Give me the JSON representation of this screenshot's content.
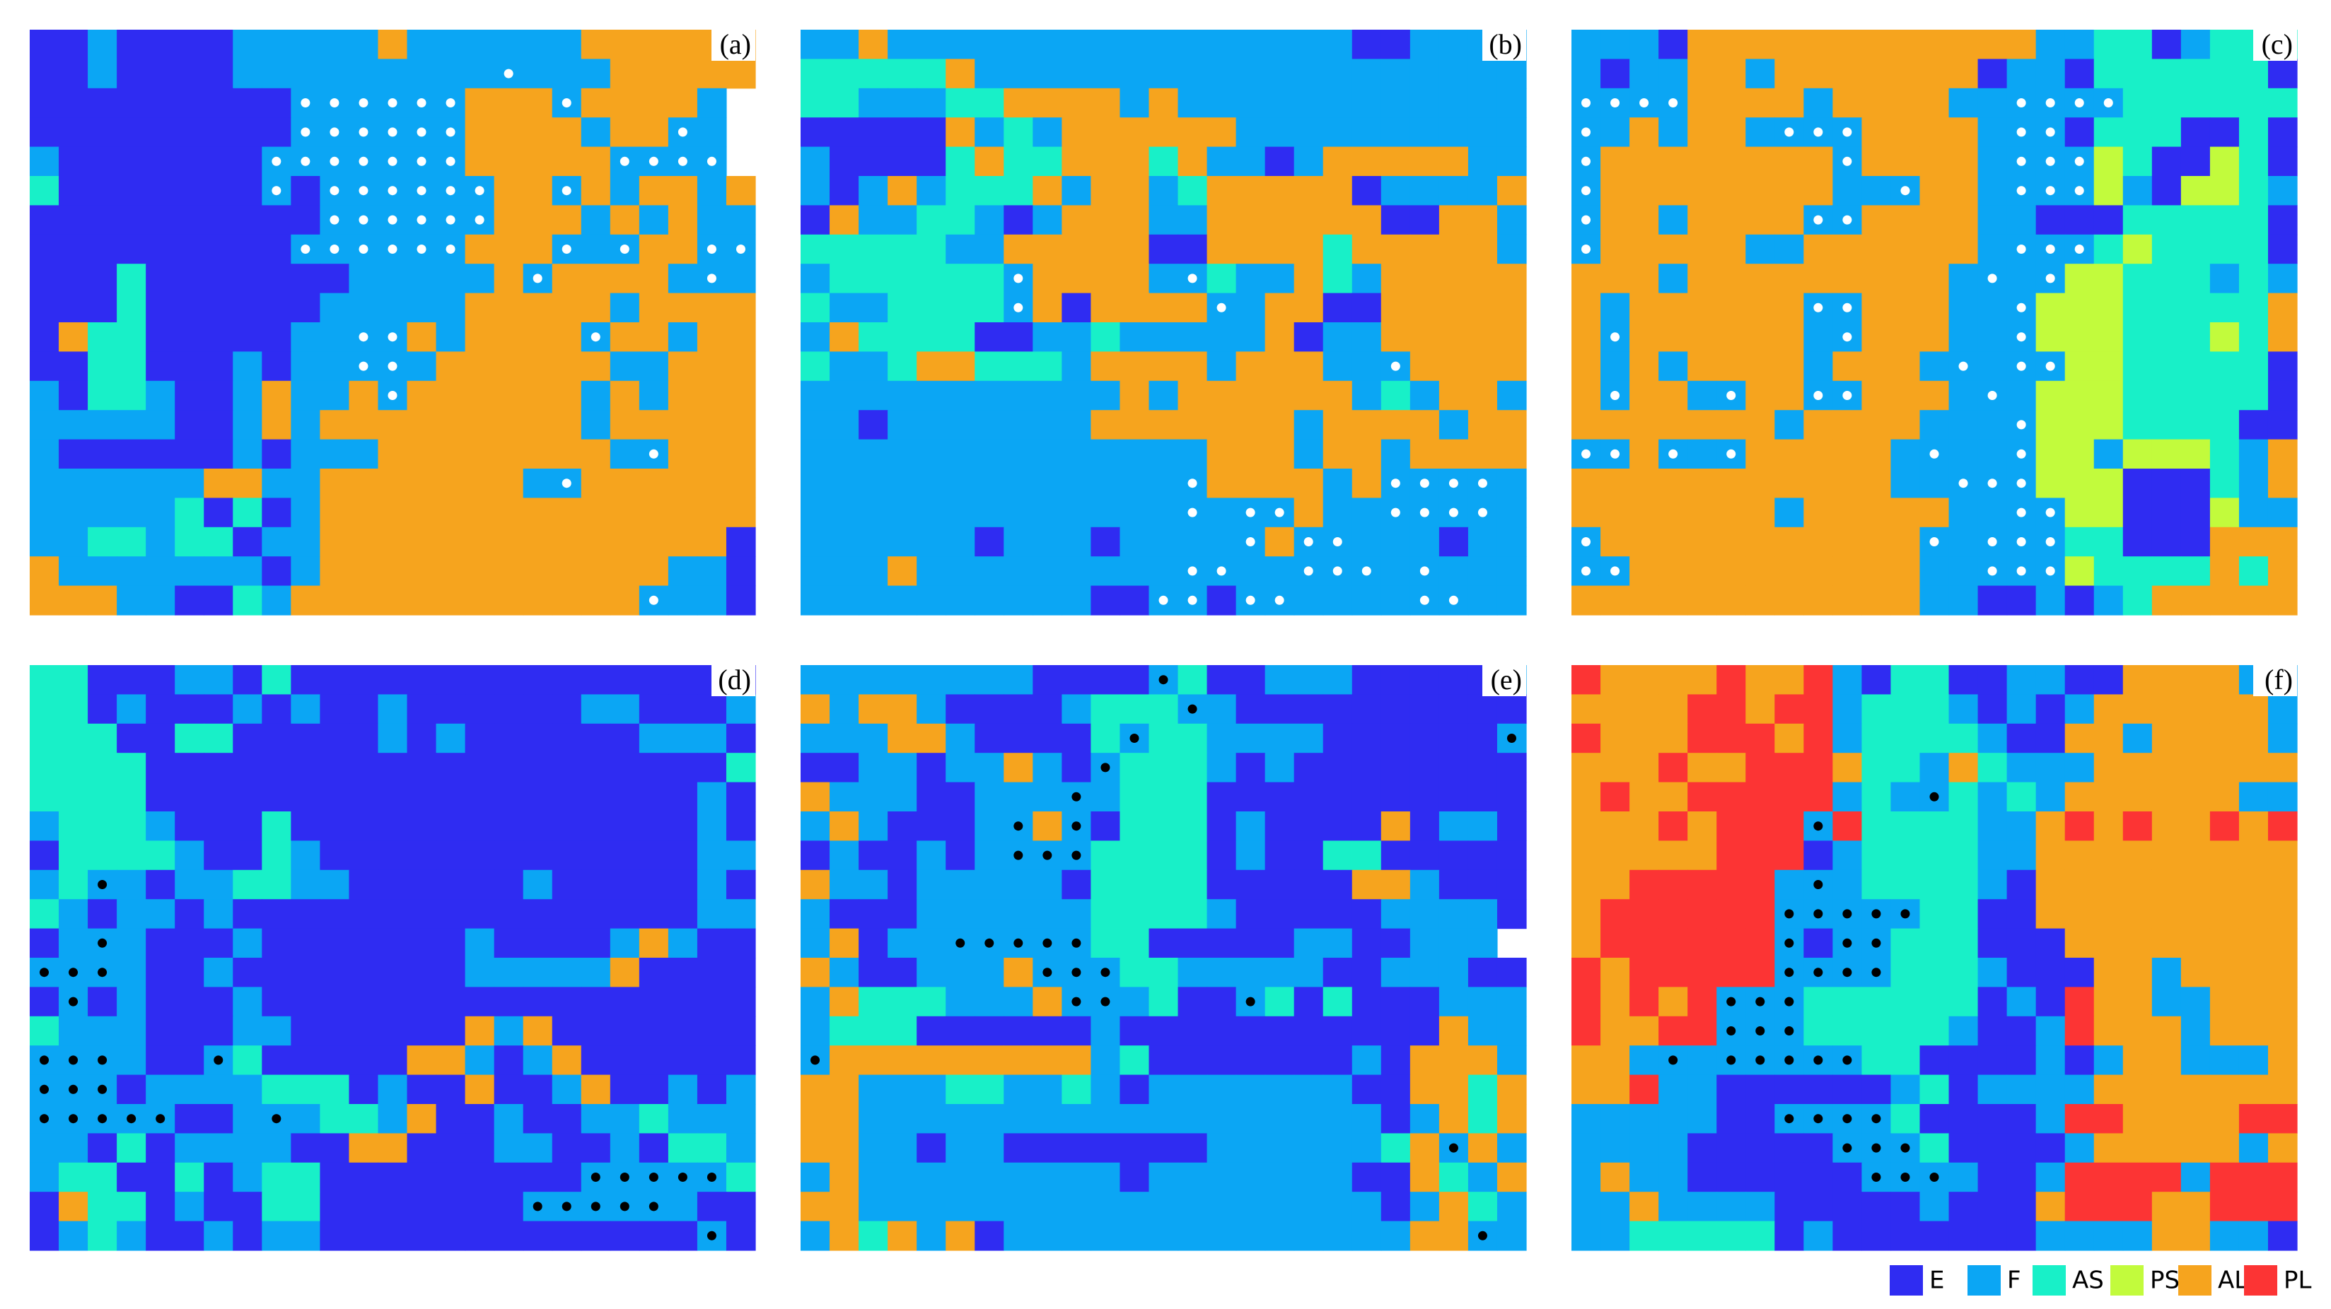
{
  "panels": [
    {
      "label": "(a)",
      "dot_color": "#ffffff",
      "grid": [
        "EEFEEEEFFFFFLFFFFFFLLLLLL",
        "EEFEEEEFFFFFFFFFfFFFLLLLL",
        "EEEEEEEEEffffffLLLfLLLLF",
        "EEEEEEEEEffffffLLLLFLLfF",
        "FEEEEEEEfffffffLLLLLffff",
        "AEEEEEEEfEffffffLLfLFLLFL",
        "EEEEEEEEEEffffffLLLFLFLFF",
        "EEEEEEEEEffffffLLLfFfLLff",
        "EEEAEEEEEEEFFFFFLfLLLLFfF",
        "EEEAEEEEEEFFFFFLLLLLFLLLL",
        "ELAAEEEEEFFffLFLLLLfLLFLL",
        "EEAAEEEFEFFffFLLLLLLFFLLL",
        "FEAAFEEFLFFLfLLLLLLFLFLLL",
        "FFFFFEEFLFLLLLLLLLLFLLLLL",
        "FEEEEEEFEFFFLLLLLLLLFfLLL",
        "FFFFFFLLFFLLLLLLLFfLLLLLL",
        "FFFFFAEAEFLLLLLLLLLLLLLLL",
        "FFAAFAAEFFLLLLLLLLLLLLLLE",
        "LFFFFFFFEFLLLLLLLLLLLLFFE",
        "LLLFFEEAFLLLLLLLLLLLLfFFE"
      ]
    },
    {
      "label": "(b)",
      "dot_color": "#ffffff",
      "grid": [
        "FFLFFFFFFFFFFFFFFFFEEFFFF",
        "AAAAALFFFFFFFFFFFFFFFFFFF",
        "AAFFFAALLLLFLFFFFFFFFFFFF",
        "EEEEELFAFLLLLLLFFFFFFFFFF",
        "FEEEEALAALLLALFFEFLLLLLFF",
        "FEFLFAAALFLLFALLLLLEFFFFL",
        "ELFFAAFEFLLLFFLLLLLLEELLF",
        "AAAAAFFLLLLLEELLLLALLLLLF",
        "FAAAAAAfLLLLFfAFFLAFLLLLL",
        "AFFAAAAfLELLLLfFLLEELLLLL",
        "FLAAAAEEFFAFFFFFLEFFLLLLL",
        "AFFALLAAAFLLLLFLLLFFfLLLL",
        "FFFFFFFFFFFLFLLLLLLFAFLLF",
        "FFEFFFFFFFLLLLLLLFLLLLFLL",
        "FFFFFFFFFFFFFFLLLFLLFLLLL",
        "FFFFFFFFFFFFFfLLLLFLffffF",
        "FFFFFFFFFFFFFfFffLFFffffF",
        "FFFFFFEFFFEFFFFfLffFFFEFF",
        "FFFLFFFFFFFFFffFFfffFfFFF",
        "FFFFFFFFFFEEffEffFFFFffFF"
      ]
    },
    {
      "label": "(c)",
      "dot_color": "#ffffff",
      "grid": [
        "FFFELLLLLLLLLLLLFFAAEFAAA",
        "FEFFLLFLLLLLLLEFFEAAAAAAE",
        "ffffLLLLFLLLLFFffffAAAAAA",
        "fFLFLLFfffLLLLFffEAAAEEAE",
        "fLLLLLLLLfLLLLFfffPAEEPAE",
        "fLLLLLLLLFFfLLFfffPFEPPAF",
        "fLLFLLLLffLLLLFFEEEAAAAAE",
        "fLLLLLFFLLLLLLFfffAPAAAAE",
        "LLLFLLLLLLLLLFfFfPPAAAFAF",
        "LFLLLLLLffLLLFFfPPPAAAAAL",
        "LfLLLLLLFfLLLFFfPPPAAAPAL",
        "LFLFLLLLFLLLFfFffPPAAAAAE",
        "LfLLFfLLffLLLFfFPPPAAAAAE",
        "LLLLLLLFLLLLFFFfPPPAAAAEE",
        "ffLfFfLLLLLFfFFfPPFPPPAFL",
        "LLLLLLLLLLLFFfffPPPEEEAFL",
        "LLLLLLLFLLLLLFFffPPEEEPFF",
        "fLLLLLLLLLLLfFfffAAEEELLL",
        "ffLLLLLLLLLLFFfffPAAAALAL",
        "LLLLLLLLLLLLFFEEFEFALLLLL"
      ]
    },
    {
      "label": "(d)",
      "dot_color": "#000000",
      "grid": [
        "AAEEEFFEAEEEEEEEEEEEEEEEE",
        "AAEFEEEFEFEEFEEEEEEFFEEEF",
        "AAAEEAAEEEEEFEFEEEEEEFFFE",
        "AAAAEEEEEEEEEEEEEEEEEEEEA",
        "AAAAEEEEEEEEEEEEEEEEEEEFE",
        "FAAAFEEEAEEEEEEEEEEEEEEFE",
        "EAAAAFEEAFEEEEEEEEEEEEEFF",
        "FAfFEFFAAFFEEEEEEFEEEEEFE",
        "AFEFFEFEEEEEEEEEEEEEEEEFF",
        "EFfFEEEFEEEEEEEFEEEEFLFEE",
        "fffFEEFEEEEEEEEFFFFFLEEEE",
        "EfEFEEEFEEEEEEEEEEEEEEEEE",
        "AFFFEEEFFEEEEEELFLEEEEEEE",
        "fffFEEfAEEEEELLFEFLEEEEEE",
        "fffEFFFFAAAEFEELEEFLEEFEF",
        "fffffEEFfFAAFLEEFEEFFAFFF",
        "FFEAEFFFFEELLEEEFFEEFEAAF",
        "FAAEEAEFAAEEEEEEEEEfffffA",
        "ELAAEFEEAAEEEEEEEfffffFEE",
        "EFAFEEFEFFEEEEEEEEEEEEEfE"
      ]
    },
    {
      "label": "(e)",
      "dot_color": "#000000",
      "grid": [
        "FFFFFFFFEEEEfAEEFFFEEEEEF",
        "LFLLFEEEEFAAAfFEEEEEEEEEE",
        "FFFLLFEEEEAfAAFFFFEEEEEEf",
        "EEFFEFFLFEfAAAFEFEEEEEEEE",
        "LFFFEEFFFfFAAAEEEEEEEEEEE",
        "FLFEEEFfLfEAAAEFEEEELEFFE",
        "EFEEFEFfffAAAAEFEEAAEEEEE",
        "LFFEFFFFFEAAAAEEEEELLFEEE",
        "FEEEFFFFFFAAAAFEEEEEFFFFE",
        "FLEFFfffffAAEEEEEFFEEFFF",
        "LFEEFFFLfffAAFFFFFEEFFFEE",
        "FLAAAFFFLffFAEEfAEAEEEFFF",
        "FAAAEEEEEEFEEEEEEEEEEELFF",
        "fLLLLLLLLLFAEEEEEEEFELLLF",
        "LLFFFAAFFAFEFFFFFFFEELLAL",
        "LLFFFFFFFFFFFFFFFFFFEFLAL",
        "LLFFEFFEEEEEEEFFFFFFALfLF",
        "FLFFFFFFFFFEFFFFFFFEELAFL",
        "LLFFFFFFFFFFFFFFFFFFEFLAF",
        "FLALFLEFFFFFFFFFFFFFFLLfF"
      ]
    },
    {
      "label": "(f)",
      "dot_color": "#000000",
      "grid": [
        "RLLLLRLLRFEAAEEFFEELLLLFF",
        "LLLLRRLRRFAAAFEFEFLLLLLLF",
        "RLLLRRRLRFAAAAFEELLFLLLLF",
        "LLLRLLRRRLAAFLAFFFLLLLLLL",
        "LRLLRRRRRFAFfAFAFLLLLLLFF",
        "LLLRLRRRfRAAAAFFLRLRLLRLR",
        "LLLLLRRREFAAAAFFLLLLLLLLL",
        "LLRRRRRFfFAAAAFELLLLLLLLL",
        "LRRRRRRfffffAAEELLLLLLLLL",
        "LRRRRRRfEffAAAEEELLLLLLLL",
        "RLRRRRRffffAAAFEEELLFLLLL",
        "RLRLRfffAAAAAAEFERLLFFLLL",
        "RLLRRfffAAAAAFEEFRLLLFLLL",
        "LLFfFfffffAAEEEEFEFLLFFFL",
        "LLRFFEEEEEEFAEFFFFLLLLLLL",
        "FFFFFEEffffAEEEEFRRLLLLRR",
        "FFFFEEEEEfffAEEEEFLLLLLFL",
        "FLFFEEEEEEfffFEEFRRRRFRRR",
        "FFLFFFFEEEEEFEEELRRRLLRRR",
        "FFAAAAAEFEEEEEEEFFFFLLFFE"
      ]
    }
  ],
  "legend": [
    {
      "name": "E",
      "color": "#2f2cf2"
    },
    {
      "name": "F",
      "color": "#0ba6f4"
    },
    {
      "name": "AS",
      "color": "#18f0c8"
    },
    {
      "name": "PS",
      "color": "#c2fb3c"
    },
    {
      "name": "AL",
      "color": "#f6a41e"
    },
    {
      "name": "PL",
      "color": "#fc3434"
    }
  ]
}
